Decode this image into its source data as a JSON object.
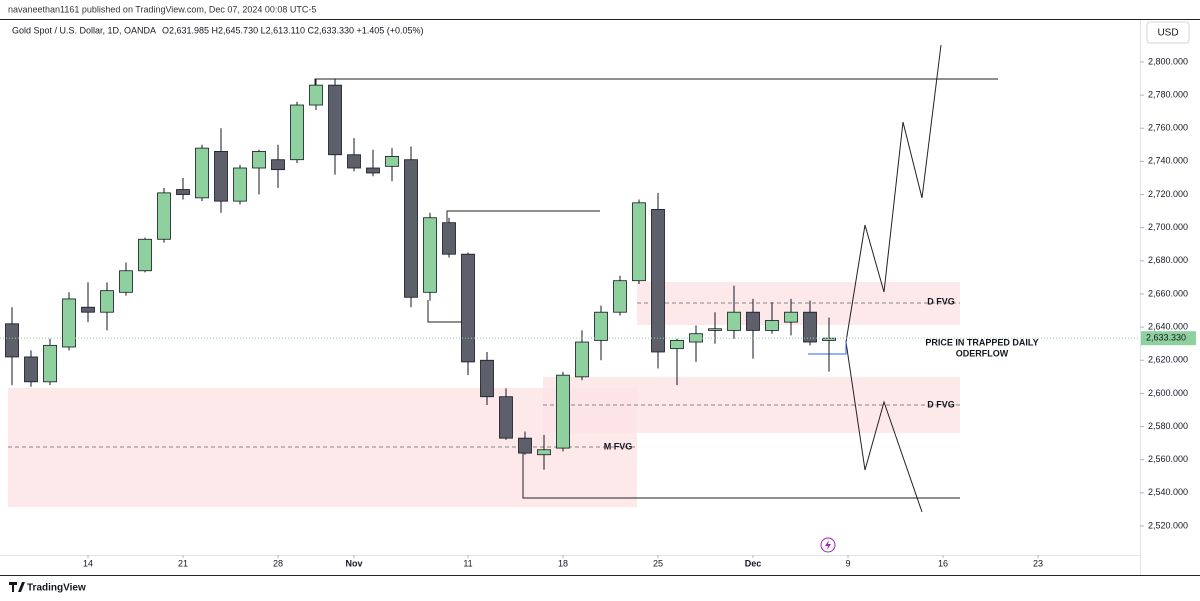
{
  "header": {
    "published": "navaneethan1161 published on TradingView.com, Dec 07, 2024 00:08 UTC-5",
    "symbol": "Gold Spot / U.S. Dollar, 1D, OANDA",
    "ohlc": "O2,631.985  H2,645.730  L2,613.110  C2,633.330  +1.405 (+0.05%)",
    "currency": "USD",
    "brand": "TradingView"
  },
  "annotations": {
    "upper_fvg": "D FVG",
    "lower_fvg": "D FVG",
    "monthly_fvg": "M FVG",
    "note_line1": "PRICE IN TRAPPED DAILY",
    "note_line2": "ODERFLOW"
  },
  "chart_data": {
    "type": "candlestick",
    "up_color": "#8fd19e",
    "down_color": "#5d606b",
    "x": [
      "2024-10-08",
      "2024-10-09",
      "2024-10-10",
      "2024-10-11",
      "2024-10-14",
      "2024-10-15",
      "2024-10-16",
      "2024-10-17",
      "2024-10-18",
      "2024-10-21",
      "2024-10-22",
      "2024-10-23",
      "2024-10-24",
      "2024-10-25",
      "2024-10-28",
      "2024-10-29",
      "2024-10-30",
      "2024-10-31",
      "2024-11-01",
      "2024-11-04",
      "2024-11-05",
      "2024-11-06",
      "2024-11-07",
      "2024-11-08",
      "2024-11-11",
      "2024-11-12",
      "2024-11-13",
      "2024-11-14",
      "2024-11-15",
      "2024-11-18",
      "2024-11-19",
      "2024-11-20",
      "2024-11-21",
      "2024-11-22",
      "2024-11-25",
      "2024-11-26",
      "2024-11-27",
      "2024-11-28",
      "2024-11-29",
      "2024-12-02",
      "2024-12-03",
      "2024-12-04",
      "2024-12-05",
      "2024-12-06"
    ],
    "open": [
      2642,
      2622,
      2607,
      2628,
      2652,
      2649,
      2661,
      2674,
      2693,
      2723,
      2718,
      2746,
      2716,
      2736,
      2741,
      2741,
      2774,
      2786,
      2744,
      2736,
      2737,
      2741,
      2661,
      2703,
      2684,
      2620,
      2598,
      2573,
      2563,
      2567,
      2610,
      2632,
      2649,
      2668,
      2711,
      2627,
      2631,
      2638,
      2638,
      2649,
      2638,
      2643,
      2649,
      2631.985
    ],
    "high": [
      2652,
      2626,
      2633,
      2661,
      2667,
      2667,
      2679,
      2694,
      2724,
      2730,
      2750,
      2760,
      2738,
      2747,
      2750,
      2776,
      2790,
      2790,
      2754,
      2747,
      2748,
      2749,
      2709,
      2706,
      2685,
      2625,
      2603,
      2577,
      2575,
      2613,
      2638,
      2653,
      2671,
      2717,
      2721,
      2633,
      2641,
      2649,
      2665,
      2657,
      2655,
      2657,
      2656,
      2645.73
    ],
    "low": [
      2605,
      2604,
      2605,
      2626,
      2643,
      2638,
      2659,
      2673,
      2691,
      2717,
      2716,
      2709,
      2714,
      2720,
      2724,
      2739,
      2771,
      2732,
      2734,
      2731,
      2728,
      2652,
      2656,
      2682,
      2611,
      2593,
      2572,
      2563,
      2554,
      2565,
      2608,
      2620,
      2647,
      2666,
      2615,
      2605,
      2619,
      2630,
      2633,
      2621,
      2636,
      2635,
      2629,
      2613.11
    ],
    "close": [
      2622,
      2607,
      2629,
      2657,
      2649,
      2662,
      2674,
      2693,
      2721,
      2720,
      2748,
      2716,
      2736,
      2746,
      2735,
      2774,
      2786,
      2744,
      2736,
      2733,
      2743,
      2658,
      2706,
      2684,
      2619,
      2598,
      2573,
      2564,
      2566,
      2611,
      2631,
      2649,
      2668,
      2715,
      2625,
      2632,
      2636,
      2639,
      2649,
      2638,
      2644,
      2649,
      2631,
      2633.33
    ],
    "last_price": {
      "value": 2633.33,
      "label": "2,633.330"
    },
    "ylim": [
      2502.5,
      2825.3
    ],
    "yticks": [
      {
        "value": 2520,
        "label": "2,520.000"
      },
      {
        "value": 2540,
        "label": "2,540.000"
      },
      {
        "value": 2560,
        "label": "2,560.000"
      },
      {
        "value": 2580,
        "label": "2,580.000"
      },
      {
        "value": 2600,
        "label": "2,600.000"
      },
      {
        "value": 2620,
        "label": "2,620.000"
      },
      {
        "value": 2640,
        "label": "2,640.000"
      },
      {
        "value": 2660,
        "label": "2,660.000"
      },
      {
        "value": 2680,
        "label": "2,680.000"
      },
      {
        "value": 2700,
        "label": "2,700.000"
      },
      {
        "value": 2720,
        "label": "2,720.000"
      },
      {
        "value": 2740,
        "label": "2,740.000"
      },
      {
        "value": 2760,
        "label": "2,760.000"
      },
      {
        "value": 2780,
        "label": "2,780.000"
      },
      {
        "value": 2800,
        "label": "2,800.000"
      }
    ],
    "xticks": [
      {
        "value": "2024-10-14",
        "label": "14"
      },
      {
        "value": "2024-10-21",
        "label": "21"
      },
      {
        "value": "2024-10-28",
        "label": "28"
      },
      {
        "value": "2024-11-01",
        "label": "Nov"
      },
      {
        "value": "2024-11-11",
        "label": "11"
      },
      {
        "value": "2024-11-18",
        "label": "18"
      },
      {
        "value": "2024-11-25",
        "label": "25"
      },
      {
        "value": "2024-12-02",
        "label": "Dec"
      },
      {
        "value": "2024-12-09",
        "label": "9"
      },
      {
        "value": "2024-12-16",
        "label": "16"
      },
      {
        "value": "2024-12-23",
        "label": "23"
      }
    ]
  }
}
